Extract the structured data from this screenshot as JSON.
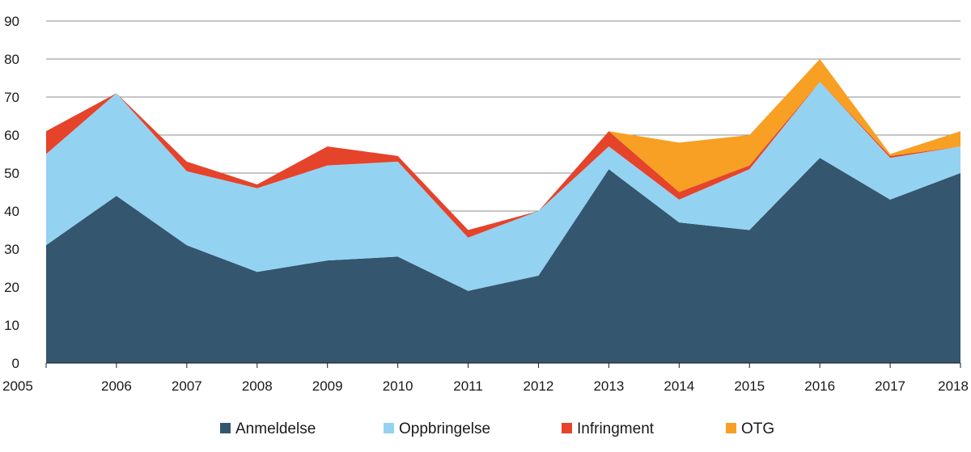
{
  "chart_data": {
    "type": "area",
    "stacked": true,
    "title": "",
    "xlabel": "",
    "ylabel": "",
    "x": [
      "2005",
      "2006",
      "2007",
      "2008",
      "2009",
      "2010",
      "2011",
      "2012",
      "2013",
      "2014",
      "2015",
      "2016",
      "2017",
      "2018"
    ],
    "ylim": [
      0,
      90
    ],
    "yticks": [
      0,
      10,
      20,
      30,
      40,
      50,
      60,
      70,
      80,
      90
    ],
    "grid": true,
    "legend_position": "bottom",
    "series": [
      {
        "name": "Anmeldelse",
        "color": "#34566f",
        "values": [
          31,
          44,
          31,
          24,
          27,
          28,
          19,
          23,
          51,
          37,
          35,
          54,
          43,
          50
        ]
      },
      {
        "name": "Oppbringelse",
        "color": "#94d2f2",
        "values": [
          24,
          27,
          19.5,
          22,
          25,
          25,
          14,
          17,
          6,
          6,
          16,
          20,
          11,
          7
        ]
      },
      {
        "name": "Infringment",
        "color": "#e5432a",
        "values": [
          6,
          0,
          2.5,
          1,
          5,
          1.5,
          2,
          0,
          4,
          2,
          1,
          0,
          0.5,
          0
        ]
      },
      {
        "name": "OTG",
        "color": "#f7a024",
        "values": [
          0,
          0,
          0,
          0,
          0,
          0,
          0,
          0,
          0,
          13,
          8,
          6,
          0.5,
          4
        ]
      }
    ]
  }
}
